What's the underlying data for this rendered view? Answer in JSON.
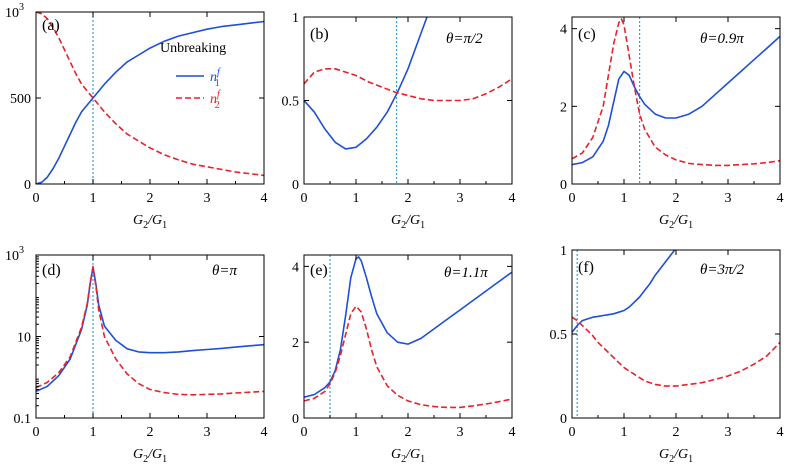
{
  "figure": {
    "xlabel_main": "G",
    "xlabel_sub1": "2",
    "xlabel_slash": "/G",
    "xlabel_sub2": "1"
  },
  "legend": {
    "title": "Unbreaking",
    "entries": [
      {
        "label": "n",
        "sup": "f",
        "sub": "1",
        "color": "#1f4fd8",
        "style": "solid"
      },
      {
        "label": "n",
        "sup": "f",
        "sub": "2",
        "color": "#e8222a",
        "style": "dashed"
      }
    ]
  },
  "colors": {
    "n1": "#1f4fd8",
    "n2": "#e8222a",
    "vline": "#3a9be0"
  },
  "chart_data": [
    {
      "panel": "(a)",
      "theta": "",
      "type": "line",
      "yscale": "linear",
      "xlim": [
        0,
        4
      ],
      "ylim": [
        0,
        1000
      ],
      "xticks": [
        "0",
        "1",
        "2",
        "3",
        "4"
      ],
      "yticks": [
        {
          "v": 0,
          "label": "0"
        },
        {
          "v": 500,
          "label": "500"
        },
        {
          "v": 1000,
          "label": "10",
          "sup": "3"
        }
      ],
      "vline": 1.0,
      "series": [
        {
          "name": "n1",
          "x": [
            0,
            0.1,
            0.2,
            0.3,
            0.4,
            0.5,
            0.6,
            0.7,
            0.8,
            0.9,
            1.0,
            1.2,
            1.4,
            1.6,
            1.8,
            2.0,
            2.25,
            2.5,
            2.75,
            3.0,
            3.25,
            3.5,
            3.75,
            4.0
          ],
          "y": [
            0,
            10,
            40,
            90,
            150,
            220,
            290,
            360,
            420,
            460,
            500,
            580,
            650,
            710,
            750,
            790,
            830,
            860,
            880,
            900,
            915,
            925,
            935,
            945
          ]
        },
        {
          "name": "n2",
          "x": [
            0,
            0.1,
            0.2,
            0.3,
            0.4,
            0.5,
            0.6,
            0.7,
            0.8,
            0.9,
            1.0,
            1.2,
            1.4,
            1.6,
            1.8,
            2.0,
            2.25,
            2.5,
            2.75,
            3.0,
            3.25,
            3.5,
            3.75,
            4.0
          ],
          "y": [
            1000,
            990,
            960,
            910,
            850,
            780,
            710,
            640,
            580,
            540,
            500,
            420,
            350,
            290,
            250,
            210,
            170,
            140,
            115,
            100,
            85,
            70,
            60,
            50
          ]
        }
      ]
    },
    {
      "panel": "(b)",
      "theta": "θ=π/2",
      "type": "line",
      "yscale": "linear",
      "xlim": [
        0,
        4
      ],
      "ylim": [
        0,
        1
      ],
      "xticks": [
        "0",
        "1",
        "2",
        "3",
        "4"
      ],
      "yticks": [
        {
          "v": 0,
          "label": "0"
        },
        {
          "v": 0.5,
          "label": "0.5"
        },
        {
          "v": 1,
          "label": "1"
        }
      ],
      "vline": 1.78,
      "series": [
        {
          "name": "n1",
          "x": [
            0,
            0.2,
            0.4,
            0.6,
            0.8,
            1.0,
            1.2,
            1.4,
            1.6,
            1.8,
            2.0,
            2.2,
            2.4
          ],
          "y": [
            0.5,
            0.43,
            0.33,
            0.25,
            0.21,
            0.22,
            0.27,
            0.34,
            0.43,
            0.55,
            0.69,
            0.86,
            1.03
          ]
        },
        {
          "name": "n2",
          "x": [
            0,
            0.2,
            0.4,
            0.6,
            0.8,
            1.0,
            1.25,
            1.5,
            1.75,
            2.0,
            2.25,
            2.5,
            2.75,
            3.0,
            3.25,
            3.5,
            3.75,
            4.0
          ],
          "y": [
            0.6,
            0.67,
            0.69,
            0.69,
            0.67,
            0.65,
            0.61,
            0.58,
            0.55,
            0.53,
            0.51,
            0.5,
            0.5,
            0.5,
            0.51,
            0.54,
            0.58,
            0.63
          ]
        }
      ]
    },
    {
      "panel": "(c)",
      "theta": "θ=0.9π",
      "type": "line",
      "yscale": "linear",
      "xlim": [
        0,
        4
      ],
      "ylim": [
        0,
        4.3
      ],
      "xticks": [
        "0",
        "1",
        "2",
        "3",
        "4"
      ],
      "yticks": [
        {
          "v": 0,
          "label": "0"
        },
        {
          "v": 2,
          "label": "2"
        },
        {
          "v": 4,
          "label": "4"
        }
      ],
      "vline": 1.3,
      "series": [
        {
          "name": "n1",
          "x": [
            0,
            0.2,
            0.4,
            0.6,
            0.7,
            0.8,
            0.9,
            1.0,
            1.1,
            1.2,
            1.3,
            1.4,
            1.6,
            1.8,
            2.0,
            2.25,
            2.5,
            2.75,
            3.0,
            3.25,
            3.5,
            3.75,
            4.0
          ],
          "y": [
            0.5,
            0.55,
            0.7,
            1.1,
            1.5,
            2.1,
            2.7,
            2.9,
            2.8,
            2.5,
            2.25,
            2.05,
            1.8,
            1.7,
            1.7,
            1.8,
            2.0,
            2.3,
            2.6,
            2.9,
            3.2,
            3.5,
            3.8
          ]
        },
        {
          "name": "n2",
          "x": [
            0,
            0.2,
            0.4,
            0.6,
            0.7,
            0.8,
            0.9,
            0.95,
            1.0,
            1.1,
            1.2,
            1.3,
            1.4,
            1.6,
            1.8,
            2.0,
            2.25,
            2.5,
            2.75,
            3.0,
            3.25,
            3.5,
            3.75,
            4.0
          ],
          "y": [
            0.65,
            0.8,
            1.2,
            2.0,
            2.8,
            3.6,
            4.15,
            4.25,
            4.1,
            3.3,
            2.5,
            1.8,
            1.4,
            0.95,
            0.75,
            0.62,
            0.53,
            0.5,
            0.48,
            0.48,
            0.5,
            0.52,
            0.55,
            0.6
          ]
        }
      ]
    },
    {
      "panel": "(d)",
      "theta": "θ=π",
      "type": "line",
      "yscale": "log",
      "xlim": [
        0,
        4
      ],
      "ylim": [
        0.1,
        1000
      ],
      "xticks": [
        "0",
        "1",
        "2",
        "3",
        "4"
      ],
      "yticks": [
        {
          "v": 0.1,
          "label": "0.1"
        },
        {
          "v": 10,
          "label": "10"
        },
        {
          "v": 1000,
          "label": "10",
          "sup": "3"
        }
      ],
      "vline": 1.0,
      "series": [
        {
          "name": "n1",
          "x": [
            0,
            0.2,
            0.4,
            0.6,
            0.8,
            0.9,
            0.95,
            1.0,
            1.05,
            1.1,
            1.2,
            1.4,
            1.6,
            1.8,
            2.0,
            2.25,
            2.5,
            2.75,
            3.0,
            3.25,
            3.5,
            3.75,
            4.0
          ],
          "y": [
            0.45,
            0.6,
            1.1,
            2.8,
            15,
            60,
            200,
            500,
            200,
            60,
            18,
            8,
            5,
            4.2,
            4.0,
            4.0,
            4.2,
            4.5,
            4.8,
            5.1,
            5.5,
            5.9,
            6.3
          ]
        },
        {
          "name": "n2",
          "x": [
            0,
            0.2,
            0.4,
            0.6,
            0.8,
            0.9,
            0.95,
            1.0,
            1.05,
            1.1,
            1.2,
            1.4,
            1.6,
            1.8,
            2.0,
            2.25,
            2.5,
            2.75,
            3.0,
            3.25,
            3.5,
            3.75,
            4.0
          ],
          "y": [
            0.55,
            0.75,
            1.3,
            3.2,
            17,
            65,
            210,
            520,
            180,
            45,
            10,
            2.8,
            1.2,
            0.7,
            0.5,
            0.42,
            0.38,
            0.37,
            0.38,
            0.39,
            0.41,
            0.43,
            0.45
          ]
        }
      ]
    },
    {
      "panel": "(e)",
      "theta": "θ=1.1π",
      "type": "line",
      "yscale": "linear",
      "xlim": [
        0,
        4
      ],
      "ylim": [
        0,
        4.3
      ],
      "xticks": [
        "0",
        "1",
        "2",
        "3",
        "4"
      ],
      "yticks": [
        {
          "v": 0,
          "label": "0"
        },
        {
          "v": 2,
          "label": "2"
        },
        {
          "v": 4,
          "label": "4"
        }
      ],
      "vline": 0.5,
      "series": [
        {
          "name": "n1",
          "x": [
            0,
            0.2,
            0.4,
            0.5,
            0.6,
            0.7,
            0.8,
            0.9,
            1.0,
            1.05,
            1.1,
            1.2,
            1.3,
            1.4,
            1.6,
            1.8,
            2.0,
            2.25,
            2.5,
            2.75,
            3.0,
            3.25,
            3.5,
            3.75,
            4.0
          ],
          "y": [
            0.55,
            0.62,
            0.8,
            0.95,
            1.25,
            1.8,
            2.7,
            3.7,
            4.2,
            4.25,
            4.15,
            3.7,
            3.2,
            2.75,
            2.25,
            2.0,
            1.95,
            2.1,
            2.35,
            2.6,
            2.85,
            3.1,
            3.35,
            3.6,
            3.85
          ]
        },
        {
          "name": "n2",
          "x": [
            0,
            0.2,
            0.4,
            0.5,
            0.6,
            0.7,
            0.8,
            0.9,
            1.0,
            1.1,
            1.2,
            1.3,
            1.4,
            1.6,
            1.8,
            2.0,
            2.25,
            2.5,
            2.75,
            3.0,
            3.25,
            3.5,
            3.75,
            4.0
          ],
          "y": [
            0.45,
            0.52,
            0.7,
            0.9,
            1.2,
            1.65,
            2.2,
            2.75,
            2.95,
            2.8,
            2.35,
            1.8,
            1.35,
            0.85,
            0.6,
            0.45,
            0.35,
            0.3,
            0.28,
            0.28,
            0.32,
            0.37,
            0.43,
            0.5
          ]
        }
      ]
    },
    {
      "panel": "(f)",
      "theta": "θ=3π/2",
      "type": "line",
      "yscale": "linear",
      "xlim": [
        0,
        4
      ],
      "ylim": [
        0,
        1
      ],
      "xticks": [
        "0",
        "1",
        "2",
        "3",
        "4"
      ],
      "yticks": [
        {
          "v": 0,
          "label": "0"
        },
        {
          "v": 0.5,
          "label": "0.5"
        },
        {
          "v": 1,
          "label": "1"
        }
      ],
      "vline": 0.1,
      "series": [
        {
          "name": "n1",
          "x": [
            0,
            0.1,
            0.2,
            0.3,
            0.4,
            0.5,
            0.6,
            0.7,
            0.8,
            0.9,
            1.0,
            1.1,
            1.2,
            1.3,
            1.4,
            1.5,
            1.6,
            1.7,
            1.8,
            1.9,
            2.0
          ],
          "y": [
            0.51,
            0.55,
            0.58,
            0.59,
            0.6,
            0.605,
            0.61,
            0.615,
            0.62,
            0.63,
            0.64,
            0.66,
            0.69,
            0.72,
            0.76,
            0.8,
            0.85,
            0.89,
            0.93,
            0.97,
            1.01
          ]
        },
        {
          "name": "n2",
          "x": [
            0,
            0.1,
            0.2,
            0.3,
            0.4,
            0.5,
            0.6,
            0.7,
            0.8,
            0.9,
            1.0,
            1.2,
            1.4,
            1.6,
            1.8,
            2.0,
            2.25,
            2.5,
            2.75,
            3.0,
            3.25,
            3.5,
            3.75,
            4.0
          ],
          "y": [
            0.6,
            0.58,
            0.55,
            0.52,
            0.49,
            0.45,
            0.42,
            0.39,
            0.36,
            0.33,
            0.3,
            0.26,
            0.22,
            0.2,
            0.19,
            0.19,
            0.2,
            0.21,
            0.23,
            0.25,
            0.28,
            0.32,
            0.37,
            0.45
          ]
        }
      ]
    }
  ]
}
